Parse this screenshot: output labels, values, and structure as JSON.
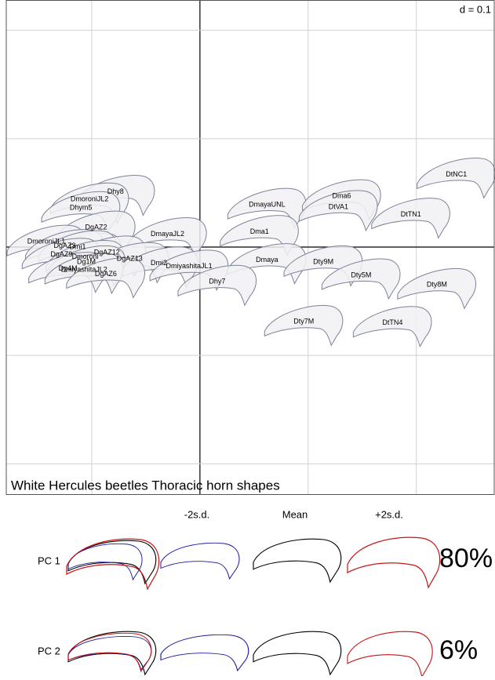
{
  "chart_data": {
    "type": "scatter",
    "title": "White Hercules beetles Thoracic horn shapes",
    "scale_label": "d = 0.1",
    "labels": [
      "DtNC1",
      "Dhy8",
      "DmoroniJL2",
      "Dhym5",
      "DmayaUNL",
      "Dma6",
      "DtVA1",
      "DtTN1",
      "DgAZ2",
      "DmayaJL2",
      "Dma1",
      "DmoroniJL1",
      "DgAZ3",
      "Dmi1",
      "DgAZ12",
      "DgAZ9",
      "Dmoroni",
      "DgAZ13",
      "Dmi2",
      "DmiyashitaJL1",
      "Dmaya",
      "Dty9M",
      "Dg1M",
      "Dg4M",
      "DmiyashitaJL2",
      "DgAZ6",
      "Dhy7",
      "Dty5M",
      "Dty8M",
      "Dty7M",
      "DtTN4"
    ],
    "x": [
      0.237,
      -0.078,
      -0.102,
      -0.11,
      0.062,
      0.131,
      0.128,
      0.195,
      -0.096,
      -0.03,
      0.055,
      -0.142,
      -0.125,
      -0.113,
      -0.086,
      -0.128,
      -0.106,
      -0.065,
      -0.038,
      -0.01,
      0.062,
      0.114,
      -0.105,
      -0.122,
      -0.107,
      -0.087,
      0.016,
      0.149,
      0.219,
      0.096,
      0.178
    ],
    "y": [
      0.067,
      0.051,
      0.044,
      0.036,
      0.039,
      0.047,
      0.037,
      0.03,
      0.018,
      0.012,
      0.014,
      0.005,
      0.001,
      0.0,
      -0.005,
      -0.007,
      -0.009,
      -0.011,
      -0.015,
      -0.018,
      -0.012,
      -0.014,
      -0.014,
      -0.02,
      -0.021,
      -0.025,
      -0.032,
      -0.026,
      -0.035,
      -0.069,
      -0.07
    ],
    "color": "#f1f1f3",
    "xlim": [
      -0.179,
      0.272
    ],
    "ylim": [
      -0.228,
      0.228
    ],
    "xticks": [
      -0.1,
      0,
      0.1,
      0.2
    ],
    "yticks": [
      -0.2,
      -0.1,
      0,
      0.1,
      0.2
    ],
    "grid": true
  },
  "shape_panel": {
    "columns": [
      "-2s.d.",
      "Mean",
      "+2s.d."
    ],
    "rows": [
      {
        "label": "PC 1",
        "variance": "80%"
      },
      {
        "label": "PC 2",
        "variance": "6%"
      }
    ]
  }
}
